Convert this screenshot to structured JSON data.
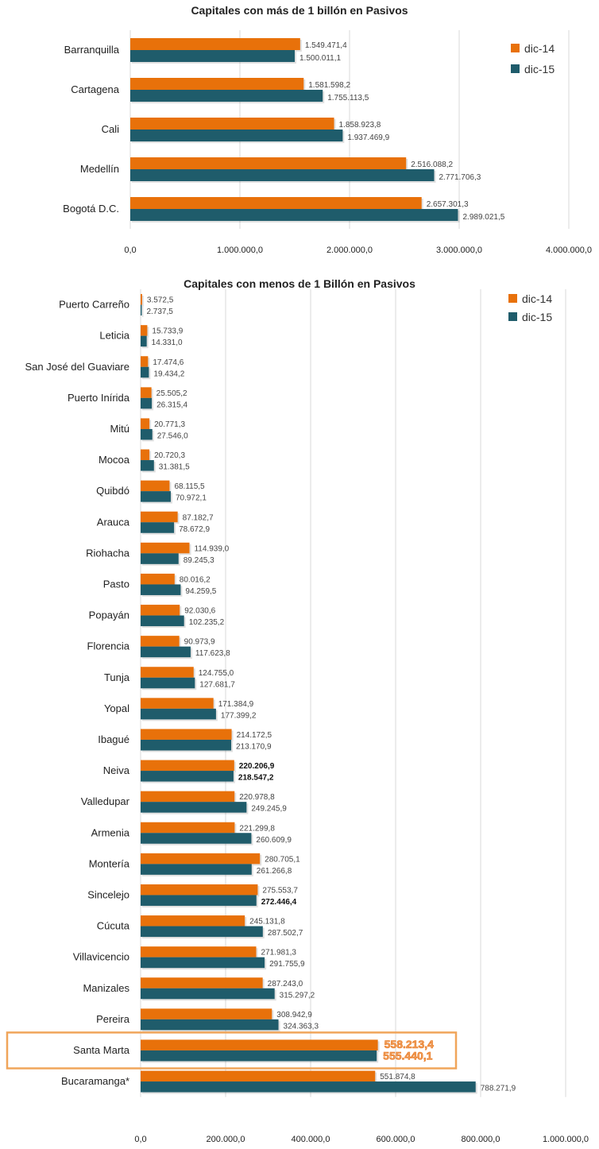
{
  "colors": {
    "dic14": "#E8710A",
    "dic15": "#1F5C6B",
    "grid": "#D9D9D9",
    "highlight": "#F0A55A"
  },
  "chart_data": [
    {
      "type": "bar",
      "orientation": "horizontal",
      "title": "Capitales con más de 1 billón en Pasivos",
      "categories": [
        "Barranquilla",
        "Cartagena",
        "Cali",
        "Medellín",
        "Bogotá D.C."
      ],
      "series": [
        {
          "name": "dic-14",
          "values": [
            1549471.4,
            1581598.2,
            1858923.8,
            2516088.2,
            2657301.3
          ],
          "labels": [
            "1.549.471,4",
            "1.581.598,2",
            "1.858.923,8",
            "2.516.088,2",
            "2.657.301,3"
          ]
        },
        {
          "name": "dic-15",
          "values": [
            1500011.1,
            1755113.5,
            1937469.9,
            2771706.3,
            2989021.5
          ],
          "labels": [
            "1.500.011,1",
            "1.755.113,5",
            "1.937.469,9",
            "2.771.706,3",
            "2.989.021,5"
          ]
        }
      ],
      "xlim": [
        0,
        4000000
      ],
      "ticks": [
        0,
        1000000,
        2000000,
        3000000,
        4000000
      ],
      "tick_labels": [
        "0,0",
        "1.000.000,0",
        "2.000.000,0",
        "3.000.000,0",
        "4.000.000,0"
      ],
      "grid": true,
      "legend": "top-right"
    },
    {
      "type": "bar",
      "orientation": "horizontal",
      "title": "Capitales con menos de 1 Billón en Pasivos",
      "categories": [
        "Puerto Carreño",
        "Leticia",
        "San José del Guaviare",
        "Puerto Inírida",
        "Mitú",
        "Mocoa",
        "Quibdó",
        "Arauca",
        "Riohacha",
        "Pasto",
        "Popayán",
        "Florencia",
        "Tunja",
        "Yopal",
        "Ibagué",
        "Neiva",
        "Valledupar",
        "Armenia",
        "Montería",
        "Sincelejo",
        "Cúcuta",
        "Villavicencio",
        "Manizales",
        "Pereira",
        "Santa Marta",
        "Bucaramanga*"
      ],
      "series": [
        {
          "name": "dic-14",
          "values": [
            3572.5,
            15733.9,
            17474.6,
            25505.2,
            20771.3,
            20720.3,
            68115.5,
            87182.7,
            114939.0,
            80016.2,
            92030.6,
            90973.9,
            124755.0,
            171384.9,
            214172.5,
            220206.9,
            220978.8,
            221299.8,
            280705.1,
            275553.7,
            245131.8,
            271981.3,
            287243.0,
            308942.9,
            558213.4,
            551874.8
          ],
          "labels": [
            "3.572,5",
            "15.733,9",
            "17.474,6",
            "25.505,2",
            "20.771,3",
            "20.720,3",
            "68.115,5",
            "87.182,7",
            "114.939,0",
            "80.016,2",
            "92.030,6",
            "90.973,9",
            "124.755,0",
            "171.384,9",
            "214.172,5",
            "220.206,9",
            "220.978,8",
            "221.299,8",
            "280.705,1",
            "275.553,7",
            "245.131,8",
            "271.981,3",
            "287.243,0",
            "308.942,9",
            "558.213,4",
            "551.874,8"
          ]
        },
        {
          "name": "dic-15",
          "values": [
            2737.5,
            14331.0,
            19434.2,
            26315.4,
            27546.0,
            31381.5,
            70972.1,
            78672.9,
            89245.3,
            94259.5,
            102235.2,
            117623.8,
            127681.7,
            177399.2,
            213170.9,
            218547.2,
            249245.9,
            260609.9,
            261266.8,
            272446.4,
            287502.7,
            291755.9,
            315297.2,
            324363.3,
            555440.1,
            788271.9
          ],
          "labels": [
            "2.737,5",
            "14.331,0",
            "19.434,2",
            "26.315,4",
            "27.546,0",
            "31.381,5",
            "70.972,1",
            "78.672,9",
            "89.245,3",
            "94.259,5",
            "102.235,2",
            "117.623,8",
            "127.681,7",
            "177.399,2",
            "213.170,9",
            "218.547,2",
            "249.245,9",
            "260.609,9",
            "261.266,8",
            "272.446,4",
            "287.502,7",
            "291.755,9",
            "315.297,2",
            "324.363,3",
            "555.440,1",
            "788.271,9"
          ]
        }
      ],
      "bold_labels": [
        {
          "category": "Neiva",
          "series": "dic-14"
        },
        {
          "category": "Neiva",
          "series": "dic-15"
        },
        {
          "category": "Sincelejo",
          "series": "dic-15"
        }
      ],
      "highlighted_category": "Santa Marta",
      "xlim": [
        0,
        1000000
      ],
      "ticks": [
        0,
        200000,
        400000,
        600000,
        800000,
        1000000
      ],
      "tick_labels": [
        "0,0",
        "200.000,0",
        "400.000,0",
        "600.000,0",
        "800.000,0",
        "1.000.000,0"
      ],
      "grid": true,
      "legend": "top-right"
    }
  ]
}
